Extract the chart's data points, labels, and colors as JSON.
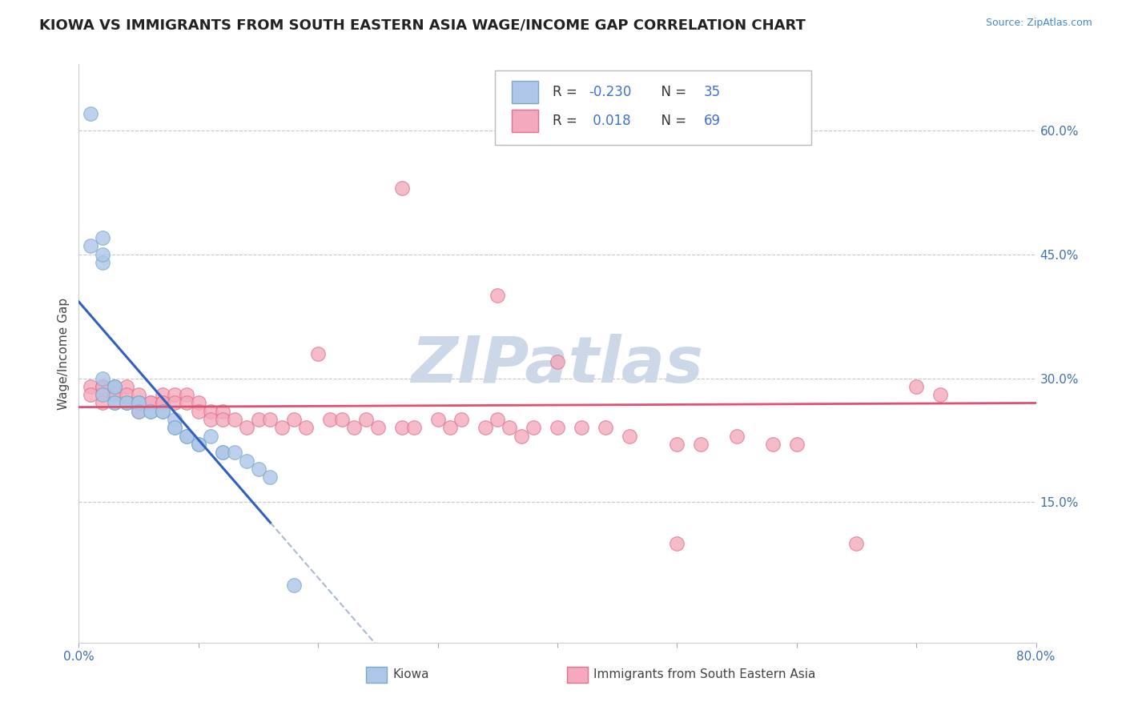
{
  "title": "KIOWA VS IMMIGRANTS FROM SOUTH EASTERN ASIA WAGE/INCOME GAP CORRELATION CHART",
  "source_text": "Source: ZipAtlas.com",
  "ylabel": "Wage/Income Gap",
  "xlim": [
    0.0,
    0.8
  ],
  "ylim": [
    -0.02,
    0.68
  ],
  "y_tick_right": [
    0.15,
    0.3,
    0.45,
    0.6
  ],
  "y_tick_right_labels": [
    "15.0%",
    "30.0%",
    "45.0%",
    "60.0%"
  ],
  "background_color": "#ffffff",
  "grid_color": "#c8c8c8",
  "watermark_text": "ZIPatlas",
  "watermark_color": "#ccd8e8",
  "legend_R1": "-0.230",
  "legend_N1": "35",
  "legend_R2": "0.018",
  "legend_N2": "69",
  "series1_label": "Kiowa",
  "series2_label": "Immigrants from South Eastern Asia",
  "series1_color": "#aec6e8",
  "series1_edge": "#7aaac8",
  "series2_color": "#f4aabc",
  "series2_edge": "#e07090",
  "trend1_color": "#3060c0",
  "trend2_color": "#e05070",
  "trend1_dash_color": "#aabbd0",
  "kiowa_x": [
    0.01,
    0.01,
    0.02,
    0.02,
    0.02,
    0.02,
    0.02,
    0.03,
    0.03,
    0.03,
    0.03,
    0.04,
    0.04,
    0.05,
    0.05,
    0.05,
    0.06,
    0.06,
    0.07,
    0.07,
    0.08,
    0.08,
    0.08,
    0.09,
    0.09,
    0.1,
    0.1,
    0.11,
    0.12,
    0.12,
    0.13,
    0.14,
    0.15,
    0.16,
    0.18
  ],
  "kiowa_y": [
    0.62,
    0.46,
    0.44,
    0.47,
    0.45,
    0.3,
    0.28,
    0.29,
    0.29,
    0.27,
    0.27,
    0.27,
    0.27,
    0.27,
    0.27,
    0.26,
    0.26,
    0.26,
    0.26,
    0.26,
    0.25,
    0.24,
    0.24,
    0.23,
    0.23,
    0.22,
    0.22,
    0.23,
    0.21,
    0.21,
    0.21,
    0.2,
    0.19,
    0.18,
    0.05
  ],
  "sea_x": [
    0.01,
    0.01,
    0.02,
    0.02,
    0.02,
    0.02,
    0.03,
    0.03,
    0.03,
    0.04,
    0.04,
    0.04,
    0.05,
    0.05,
    0.05,
    0.06,
    0.06,
    0.07,
    0.07,
    0.07,
    0.08,
    0.08,
    0.09,
    0.09,
    0.1,
    0.1,
    0.11,
    0.11,
    0.12,
    0.12,
    0.13,
    0.14,
    0.15,
    0.16,
    0.17,
    0.18,
    0.19,
    0.2,
    0.21,
    0.22,
    0.23,
    0.24,
    0.25,
    0.27,
    0.28,
    0.3,
    0.31,
    0.32,
    0.34,
    0.35,
    0.36,
    0.37,
    0.38,
    0.4,
    0.42,
    0.44,
    0.46,
    0.5,
    0.52,
    0.55,
    0.58,
    0.6,
    0.65,
    0.7,
    0.27,
    0.35,
    0.4,
    0.5,
    0.72
  ],
  "sea_y": [
    0.29,
    0.28,
    0.29,
    0.29,
    0.28,
    0.27,
    0.29,
    0.28,
    0.28,
    0.29,
    0.28,
    0.27,
    0.28,
    0.27,
    0.26,
    0.27,
    0.27,
    0.28,
    0.27,
    0.27,
    0.28,
    0.27,
    0.28,
    0.27,
    0.27,
    0.26,
    0.26,
    0.25,
    0.26,
    0.25,
    0.25,
    0.24,
    0.25,
    0.25,
    0.24,
    0.25,
    0.24,
    0.33,
    0.25,
    0.25,
    0.24,
    0.25,
    0.24,
    0.24,
    0.24,
    0.25,
    0.24,
    0.25,
    0.24,
    0.25,
    0.24,
    0.23,
    0.24,
    0.24,
    0.24,
    0.24,
    0.23,
    0.22,
    0.22,
    0.23,
    0.22,
    0.22,
    0.1,
    0.29,
    0.53,
    0.4,
    0.32,
    0.1,
    0.28
  ]
}
